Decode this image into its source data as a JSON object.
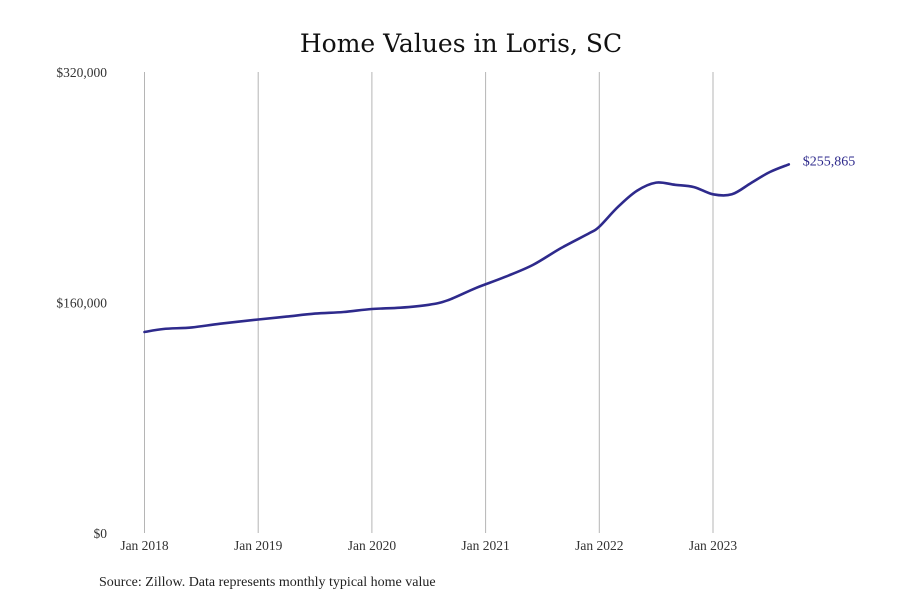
{
  "chart_data": {
    "type": "line",
    "title": "Home Values in Loris, SC",
    "xlabel": "",
    "ylabel": "",
    "ylim": [
      0,
      320000
    ],
    "y_ticks": [
      {
        "value": 0,
        "label": "$0"
      },
      {
        "value": 160000,
        "label": "$160,000"
      },
      {
        "value": 320000,
        "label": "$320,000"
      }
    ],
    "x_ticks": [
      {
        "value": "2018-01",
        "label": "Jan 2018"
      },
      {
        "value": "2019-01",
        "label": "Jan 2019"
      },
      {
        "value": "2020-01",
        "label": "Jan 2020"
      },
      {
        "value": "2021-01",
        "label": "Jan 2021"
      },
      {
        "value": "2022-01",
        "label": "Jan 2022"
      },
      {
        "value": "2023-01",
        "label": "Jan 2023"
      }
    ],
    "grid": "vertical",
    "legend": "none",
    "series": [
      {
        "color": "#2e2a8c",
        "end_label": "$255,865",
        "points": [
          {
            "x": "2018-01",
            "y": 139500
          },
          {
            "x": "2018-03",
            "y": 141600
          },
          {
            "x": "2018-06",
            "y": 142700
          },
          {
            "x": "2018-09",
            "y": 145300
          },
          {
            "x": "2019-01",
            "y": 148200
          },
          {
            "x": "2019-04",
            "y": 150200
          },
          {
            "x": "2019-07",
            "y": 152300
          },
          {
            "x": "2019-10",
            "y": 153400
          },
          {
            "x": "2020-01",
            "y": 155500
          },
          {
            "x": "2020-04",
            "y": 156400
          },
          {
            "x": "2020-07",
            "y": 158400
          },
          {
            "x": "2020-09",
            "y": 161500
          },
          {
            "x": "2020-12",
            "y": 170100
          },
          {
            "x": "2021-03",
            "y": 177600
          },
          {
            "x": "2021-06",
            "y": 186100
          },
          {
            "x": "2021-09",
            "y": 197900
          },
          {
            "x": "2021-12",
            "y": 208300
          },
          {
            "x": "2022-01",
            "y": 212600
          },
          {
            "x": "2022-03",
            "y": 226600
          },
          {
            "x": "2022-05",
            "y": 237700
          },
          {
            "x": "2022-07",
            "y": 243200
          },
          {
            "x": "2022-09",
            "y": 241700
          },
          {
            "x": "2022-11",
            "y": 240100
          },
          {
            "x": "2023-01",
            "y": 235100
          },
          {
            "x": "2023-03",
            "y": 235100
          },
          {
            "x": "2023-05",
            "y": 242900
          },
          {
            "x": "2023-07",
            "y": 250600
          },
          {
            "x": "2023-09",
            "y": 255865
          }
        ]
      }
    ],
    "source_note": "Source: Zillow. Data represents monthly typical home value"
  }
}
